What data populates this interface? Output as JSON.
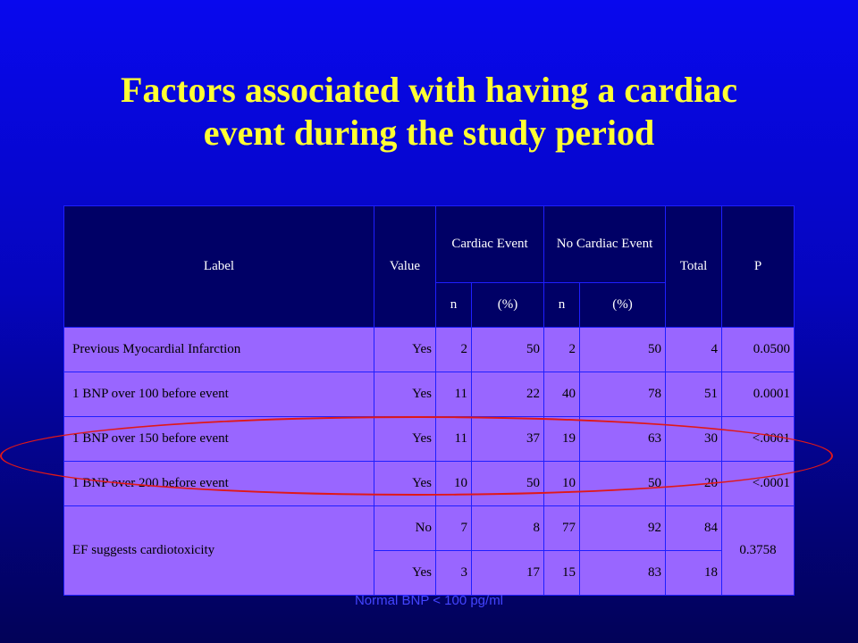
{
  "title": {
    "line1": "Factors associated with having a cardiac",
    "line2": "event during the study period"
  },
  "table": {
    "headers": {
      "label": "Label",
      "value": "Value",
      "cardiac_event": "Cardiac Event",
      "no_cardiac_event": "No Cardiac Event",
      "total": "Total",
      "p": "P",
      "n": "n",
      "pct": "(%)"
    },
    "rows": [
      {
        "label": "Previous Myocardial Infarction",
        "value": "Yes",
        "ce_n": "2",
        "ce_pct": "50",
        "nce_n": "2",
        "nce_pct": "50",
        "total": "4",
        "p": "0.0500"
      },
      {
        "label": "1 BNP over 100 before event",
        "value": "Yes",
        "ce_n": "11",
        "ce_pct": "22",
        "nce_n": "40",
        "nce_pct": "78",
        "total": "51",
        "p": "0.0001"
      },
      {
        "label": "1 BNP over 150 before event",
        "value": "Yes",
        "ce_n": "11",
        "ce_pct": "37",
        "nce_n": "19",
        "nce_pct": "63",
        "total": "30",
        "p": "<.0001"
      },
      {
        "label": "1 BNP over 200 before event",
        "value": "Yes",
        "ce_n": "10",
        "ce_pct": "50",
        "nce_n": "10",
        "nce_pct": "50",
        "total": "20",
        "p": "<.0001"
      }
    ],
    "group": {
      "label": "EF suggests cardiotoxicity",
      "p": "0.3758",
      "rows": [
        {
          "value": "No",
          "ce_n": "7",
          "ce_pct": "8",
          "nce_n": "77",
          "nce_pct": "92",
          "total": "84"
        },
        {
          "value": "Yes",
          "ce_n": "3",
          "ce_pct": "17",
          "nce_n": "15",
          "nce_pct": "83",
          "total": "18"
        }
      ]
    }
  },
  "footnote": "Normal BNP < 100 pg/ml",
  "colors": {
    "background": "#0606d8",
    "title": "#ffff33",
    "header_bg": "#000066",
    "row_bg": "#9966ff",
    "ellipse": "#e01818",
    "footnote": "#4444ff"
  }
}
